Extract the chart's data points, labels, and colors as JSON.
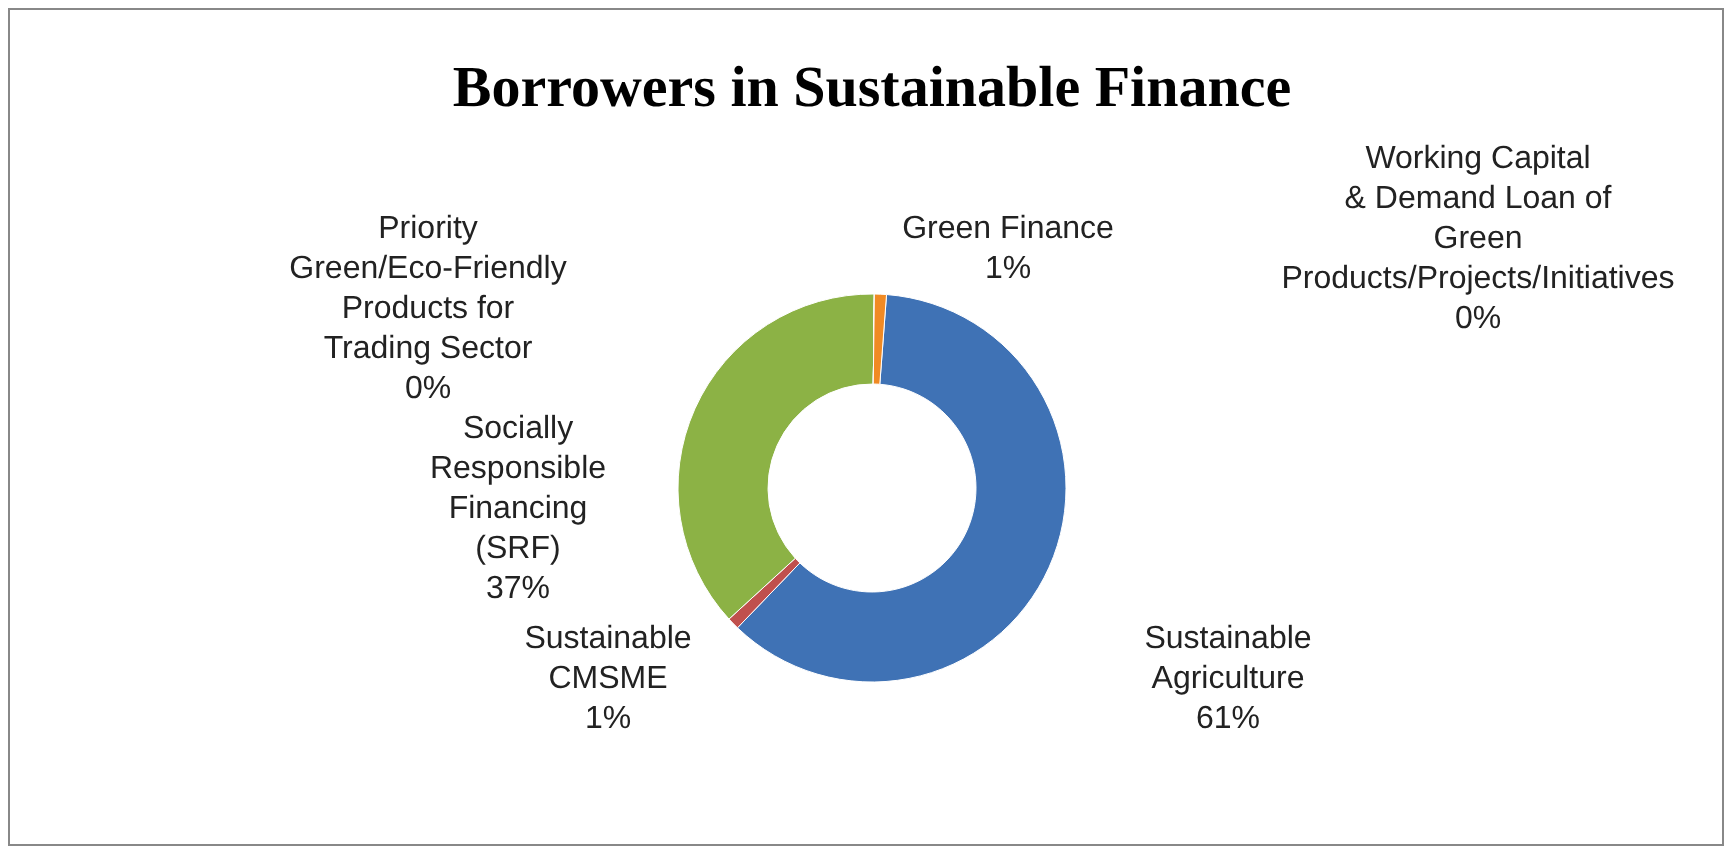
{
  "chart_data": {
    "type": "donut",
    "title": "Borrowers in Sustainable Finance",
    "categories": [
      "Sustainable Agriculture",
      "Sustainable CMSME",
      "Socially Responsible Financing (SRF)",
      "Priority Green/Eco-Friendly Products for Trading Sector",
      "Working Capital & Demand Loan of Green Products/Projects/Initiatives",
      "Green Finance"
    ],
    "values": [
      61,
      1,
      37,
      0,
      0,
      1
    ],
    "value_labels": [
      "61%",
      "1%",
      "37%",
      "0%",
      "0%",
      "1%"
    ],
    "colors": [
      "#3f72b5",
      "#c0504d",
      "#8cb245",
      "#7a5aa0",
      "#3a9bbc",
      "#f08a24"
    ]
  }
}
